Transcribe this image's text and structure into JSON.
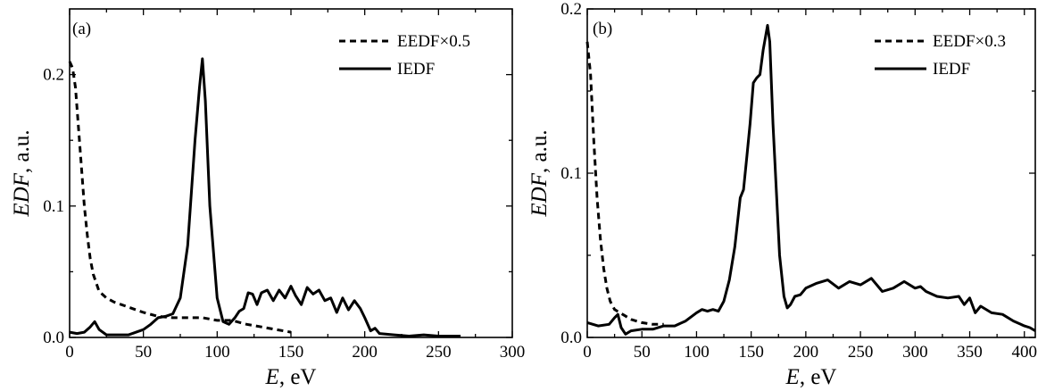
{
  "chart_data": [
    {
      "type": "line",
      "panel_label": "(a)",
      "xlabel_var": "E",
      "xlabel_unit": ", eV",
      "ylabel_var": "EDF",
      "ylabel_unit": ", a.u.",
      "xlim": [
        0,
        300
      ],
      "ylim": [
        0,
        0.25
      ],
      "xticks": [
        0,
        50,
        100,
        150,
        200,
        250,
        300
      ],
      "xtick_labels": [
        "0",
        "50",
        "100",
        "150",
        "200",
        "250",
        "300"
      ],
      "yticks": [
        0.0,
        0.1,
        0.2
      ],
      "ytick_labels": [
        "0.0",
        "0.1",
        "0.2"
      ],
      "legend_position": "top-right",
      "series": [
        {
          "name": "EEDF×0.5",
          "style": "dashed",
          "x": [
            0,
            2,
            4,
            6,
            8,
            10,
            12,
            14,
            16,
            20,
            25,
            30,
            40,
            50,
            60,
            70,
            80,
            90,
            100,
            110,
            120,
            130,
            140,
            150
          ],
          "y": [
            0.21,
            0.205,
            0.19,
            0.16,
            0.13,
            0.1,
            0.078,
            0.06,
            0.048,
            0.035,
            0.03,
            0.027,
            0.023,
            0.019,
            0.016,
            0.015,
            0.015,
            0.015,
            0.013,
            0.013,
            0.01,
            0.008,
            0.006,
            0.004
          ]
        },
        {
          "name": "IEDF",
          "style": "solid",
          "x": [
            0,
            5,
            10,
            14,
            17,
            20,
            25,
            30,
            40,
            50,
            55,
            60,
            65,
            70,
            75,
            80,
            85,
            88,
            90,
            92,
            95,
            100,
            104,
            108,
            112,
            115,
            118,
            121,
            124,
            127,
            130,
            134,
            138,
            142,
            146,
            150,
            153,
            157,
            161,
            165,
            169,
            173,
            177,
            181,
            185,
            189,
            193,
            197,
            200,
            204,
            207,
            210,
            220,
            230,
            240,
            250,
            260,
            265
          ],
          "y": [
            0.004,
            0.003,
            0.004,
            0.008,
            0.012,
            0.006,
            0.002,
            0.002,
            0.002,
            0.006,
            0.01,
            0.015,
            0.016,
            0.018,
            0.03,
            0.07,
            0.15,
            0.19,
            0.212,
            0.18,
            0.1,
            0.03,
            0.012,
            0.01,
            0.015,
            0.02,
            0.022,
            0.034,
            0.033,
            0.025,
            0.034,
            0.036,
            0.028,
            0.036,
            0.03,
            0.039,
            0.032,
            0.025,
            0.038,
            0.033,
            0.036,
            0.028,
            0.03,
            0.019,
            0.03,
            0.021,
            0.028,
            0.022,
            0.015,
            0.005,
            0.007,
            0.003,
            0.002,
            0.001,
            0.002,
            0.001,
            0.001,
            0.001
          ]
        }
      ]
    },
    {
      "type": "line",
      "panel_label": "(b)",
      "xlabel_var": "E",
      "xlabel_unit": ", eV",
      "ylabel_var": "EDF",
      "ylabel_unit": ", a.u.",
      "xlim": [
        0,
        410
      ],
      "ylim": [
        0,
        0.2
      ],
      "xticks": [
        0,
        50,
        100,
        150,
        200,
        250,
        300,
        350,
        400
      ],
      "xtick_labels": [
        "0",
        "50",
        "100",
        "150",
        "200",
        "250",
        "300",
        "350",
        "400"
      ],
      "yticks": [
        0.0,
        0.1,
        0.2
      ],
      "ytick_labels": [
        "0.0",
        "0.1",
        "0.2"
      ],
      "legend_position": "top-right",
      "series": [
        {
          "name": "EEDF×0.3",
          "style": "dashed",
          "x": [
            0,
            3,
            6,
            9,
            12,
            15,
            18,
            21,
            25,
            30,
            35,
            40,
            50,
            60,
            70
          ],
          "y": [
            0.18,
            0.16,
            0.12,
            0.085,
            0.06,
            0.042,
            0.03,
            0.022,
            0.017,
            0.015,
            0.013,
            0.011,
            0.009,
            0.008,
            0.008
          ]
        },
        {
          "name": "IEDF",
          "style": "solid",
          "x": [
            0,
            10,
            20,
            25,
            28,
            31,
            35,
            40,
            50,
            60,
            70,
            80,
            90,
            100,
            105,
            110,
            115,
            120,
            125,
            130,
            135,
            140,
            143,
            146,
            149,
            152,
            155,
            158,
            161,
            165,
            167,
            170,
            173,
            176,
            180,
            183,
            186,
            190,
            195,
            200,
            210,
            220,
            230,
            240,
            250,
            260,
            270,
            280,
            290,
            300,
            305,
            310,
            320,
            330,
            340,
            345,
            350,
            355,
            360,
            370,
            380,
            390,
            400,
            405,
            410
          ],
          "y": [
            0.009,
            0.007,
            0.008,
            0.012,
            0.014,
            0.006,
            0.002,
            0.004,
            0.005,
            0.005,
            0.007,
            0.007,
            0.01,
            0.015,
            0.017,
            0.016,
            0.017,
            0.016,
            0.022,
            0.035,
            0.055,
            0.085,
            0.09,
            0.11,
            0.13,
            0.155,
            0.158,
            0.16,
            0.175,
            0.19,
            0.18,
            0.13,
            0.09,
            0.05,
            0.025,
            0.018,
            0.02,
            0.025,
            0.026,
            0.03,
            0.033,
            0.035,
            0.03,
            0.034,
            0.032,
            0.036,
            0.028,
            0.03,
            0.034,
            0.03,
            0.031,
            0.028,
            0.025,
            0.024,
            0.025,
            0.02,
            0.024,
            0.015,
            0.019,
            0.015,
            0.014,
            0.01,
            0.007,
            0.006,
            0.004
          ]
        }
      ]
    }
  ]
}
